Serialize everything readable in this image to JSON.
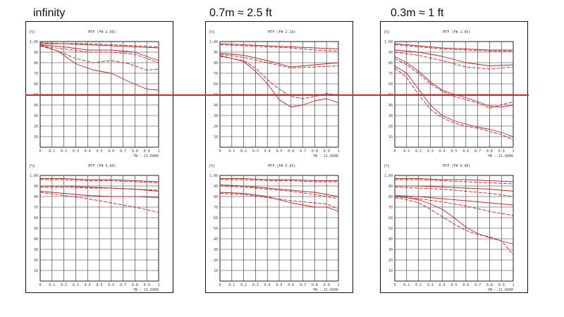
{
  "headers": [
    {
      "text": "infinity"
    },
    {
      "text": "0.7m   ≈ 2.5 ft"
    },
    {
      "text": "0.3m   ≈ 1 ft"
    }
  ],
  "chart_data": [
    {
      "type": "line",
      "unit": "[%]",
      "title": "MTF (F# 2.06)",
      "xnote": "YN -   21.6000",
      "xlim": [
        0,
        1
      ],
      "ylim": [
        0,
        100
      ],
      "xticks": [
        "0",
        "0.1",
        "0.2",
        "0.3",
        "0.4",
        "0.5",
        "0.6",
        "0.7",
        "0.8",
        "0.9",
        "1"
      ],
      "yticks": [
        "1.00",
        "90",
        "80",
        "70",
        "60",
        "50",
        "40",
        "30",
        "20",
        "10"
      ],
      "series": [
        {
          "style": "solid",
          "x": [
            0,
            0.2,
            0.4,
            0.6,
            0.8,
            1
          ],
          "y": [
            98,
            98,
            97,
            96,
            95,
            94
          ]
        },
        {
          "style": "dash",
          "x": [
            0,
            0.2,
            0.4,
            0.6,
            0.8,
            1
          ],
          "y": [
            99,
            98,
            98,
            97,
            96,
            95
          ]
        },
        {
          "style": "solid",
          "x": [
            0,
            0.2,
            0.4,
            0.6,
            0.8,
            0.9,
            1
          ],
          "y": [
            97,
            95,
            92,
            92,
            90,
            86,
            82
          ]
        },
        {
          "style": "dash",
          "x": [
            0,
            0.2,
            0.4,
            0.6,
            0.8,
            0.9,
            1
          ],
          "y": [
            96,
            93,
            90,
            90,
            88,
            84,
            80
          ]
        },
        {
          "style": "solid",
          "x": [
            0,
            0.15,
            0.3,
            0.45,
            0.6,
            0.75,
            0.9,
            1
          ],
          "y": [
            97,
            91,
            79,
            73,
            70,
            62,
            55,
            54
          ]
        },
        {
          "style": "dash",
          "x": [
            0,
            0.15,
            0.3,
            0.45,
            0.6,
            0.75,
            0.9,
            1
          ],
          "y": [
            96,
            91,
            84,
            80,
            82,
            79,
            73,
            74
          ]
        }
      ]
    },
    {
      "type": "line",
      "unit": "[%]",
      "title": "MTF (F# 2.19)",
      "xnote": "YN -   21.6000",
      "xlim": [
        0,
        1
      ],
      "ylim": [
        0,
        100
      ],
      "xticks": [
        "0",
        "0.1",
        "0.2",
        "0.3",
        "0.4",
        "0.5",
        "0.6",
        "0.7",
        "0.8",
        "0.9",
        "1"
      ],
      "yticks": [
        "1.00",
        "90",
        "80",
        "70",
        "60",
        "50",
        "40",
        "30",
        "20",
        "10"
      ],
      "series": [
        {
          "style": "solid",
          "x": [
            0,
            0.2,
            0.4,
            0.6,
            0.8,
            1
          ],
          "y": [
            98,
            97,
            96,
            95,
            94,
            93
          ]
        },
        {
          "style": "dash",
          "x": [
            0,
            0.2,
            0.4,
            0.6,
            0.8,
            1
          ],
          "y": [
            97,
            96,
            95,
            94,
            92,
            91
          ]
        },
        {
          "style": "solid",
          "x": [
            0,
            0.2,
            0.4,
            0.6,
            0.8,
            1
          ],
          "y": [
            89,
            87,
            82,
            76,
            78,
            80
          ]
        },
        {
          "style": "dash",
          "x": [
            0,
            0.2,
            0.4,
            0.6,
            0.8,
            1
          ],
          "y": [
            88,
            85,
            80,
            75,
            76,
            77
          ]
        },
        {
          "style": "solid",
          "x": [
            0,
            0.2,
            0.3,
            0.4,
            0.5,
            0.6,
            0.7,
            0.8,
            0.9,
            1
          ],
          "y": [
            87,
            81,
            72,
            60,
            45,
            38,
            40,
            44,
            46,
            42
          ]
        },
        {
          "style": "dash",
          "x": [
            0,
            0.2,
            0.3,
            0.4,
            0.5,
            0.6,
            0.7,
            0.8,
            0.9,
            1
          ],
          "y": [
            86,
            82,
            75,
            64,
            55,
            48,
            46,
            48,
            51,
            49
          ]
        }
      ]
    },
    {
      "type": "line",
      "unit": "[%]",
      "title": "MTF (F# 2.45)",
      "xnote": "YN -   21.6000",
      "xlim": [
        0,
        1
      ],
      "ylim": [
        0,
        100
      ],
      "xticks": [
        "0",
        "0.1",
        "0.2",
        "0.3",
        "0.4",
        "0.5",
        "0.6",
        "0.7",
        "0.8",
        "0.9",
        "1"
      ],
      "yticks": [
        "1.00",
        "90",
        "80",
        "70",
        "60",
        "50",
        "40",
        "30",
        "20",
        "10"
      ],
      "series": [
        {
          "style": "solid",
          "x": [
            0,
            0.2,
            0.4,
            0.6,
            0.8,
            1
          ],
          "y": [
            98,
            96,
            94,
            93,
            92,
            92
          ]
        },
        {
          "style": "dash",
          "x": [
            0,
            0.2,
            0.4,
            0.6,
            0.8,
            1
          ],
          "y": [
            97,
            95,
            93,
            92,
            91,
            91
          ]
        },
        {
          "style": "solid",
          "x": [
            0,
            0.2,
            0.4,
            0.6,
            0.8,
            1
          ],
          "y": [
            92,
            90,
            86,
            80,
            77,
            78
          ]
        },
        {
          "style": "dash",
          "x": [
            0,
            0.2,
            0.4,
            0.6,
            0.8,
            1
          ],
          "y": [
            90,
            87,
            82,
            76,
            74,
            76
          ]
        },
        {
          "style": "solid",
          "x": [
            0,
            0.1,
            0.2,
            0.3,
            0.4,
            0.5,
            0.6,
            0.7,
            0.8,
            0.9,
            1
          ],
          "y": [
            86,
            80,
            72,
            62,
            54,
            50,
            47,
            43,
            39,
            38,
            40
          ]
        },
        {
          "style": "dash",
          "x": [
            0,
            0.1,
            0.2,
            0.3,
            0.4,
            0.5,
            0.6,
            0.7,
            0.8,
            0.9,
            1
          ],
          "y": [
            84,
            78,
            70,
            60,
            53,
            48,
            45,
            42,
            37,
            40,
            43
          ]
        },
        {
          "style": "solid",
          "x": [
            0,
            0.1,
            0.2,
            0.3,
            0.4,
            0.5,
            0.6,
            0.7,
            0.8,
            0.9,
            1
          ],
          "y": [
            77,
            70,
            55,
            40,
            30,
            25,
            22,
            19,
            17,
            14,
            10
          ]
        },
        {
          "style": "dash",
          "x": [
            0,
            0.1,
            0.2,
            0.3,
            0.4,
            0.5,
            0.6,
            0.7,
            0.8,
            0.9,
            1
          ],
          "y": [
            75,
            66,
            50,
            36,
            28,
            23,
            20,
            18,
            15,
            12,
            7
          ]
        }
      ]
    },
    {
      "type": "line",
      "unit": "[%]",
      "title": "MTF (F# 5.60)",
      "xnote": "YN -   21.6000",
      "xlim": [
        0,
        1
      ],
      "ylim": [
        0,
        100
      ],
      "xticks": [
        "0",
        "0.1",
        "0.2",
        "0.3",
        "0.4",
        "0.5",
        "0.6",
        "0.7",
        "0.8",
        "0.9",
        "1"
      ],
      "yticks": [
        "1.00",
        "90",
        "80",
        "70",
        "60",
        "50",
        "40",
        "30",
        "20",
        "10"
      ],
      "series": [
        {
          "style": "solid",
          "x": [
            0,
            0.2,
            0.4,
            0.6,
            0.8,
            1
          ],
          "y": [
            97,
            97,
            96,
            96,
            95,
            94
          ]
        },
        {
          "style": "dash",
          "x": [
            0,
            0.2,
            0.4,
            0.6,
            0.8,
            1
          ],
          "y": [
            96,
            96,
            95,
            95,
            94,
            93
          ]
        },
        {
          "style": "solid",
          "x": [
            0,
            0.2,
            0.4,
            0.6,
            0.8,
            1
          ],
          "y": [
            90,
            90,
            89,
            88,
            87,
            85
          ]
        },
        {
          "style": "dash",
          "x": [
            0,
            0.2,
            0.4,
            0.6,
            0.8,
            1
          ],
          "y": [
            89,
            89,
            88,
            88,
            87,
            86
          ]
        },
        {
          "style": "solid",
          "x": [
            0,
            0.2,
            0.4,
            0.6,
            0.8,
            1
          ],
          "y": [
            85,
            83,
            81,
            80,
            80,
            79
          ]
        },
        {
          "style": "dash",
          "x": [
            0,
            0.2,
            0.4,
            0.6,
            0.8,
            1
          ],
          "y": [
            84,
            81,
            78,
            74,
            70,
            65
          ]
        }
      ]
    },
    {
      "type": "line",
      "unit": "[%]",
      "title": "MTF (F# 5.93)",
      "xnote": "YN -   21.6000",
      "xlim": [
        0,
        1
      ],
      "ylim": [
        0,
        100
      ],
      "xticks": [
        "0",
        "0.1",
        "0.2",
        "0.3",
        "0.4",
        "0.5",
        "0.6",
        "0.7",
        "0.8",
        "0.9",
        "1"
      ],
      "yticks": [
        "1.00",
        "90",
        "80",
        "70",
        "60",
        "50",
        "40",
        "30",
        "20",
        "10"
      ],
      "series": [
        {
          "style": "solid",
          "x": [
            0,
            0.2,
            0.4,
            0.6,
            0.8,
            1
          ],
          "y": [
            97,
            97,
            96,
            96,
            95,
            95
          ]
        },
        {
          "style": "dash",
          "x": [
            0,
            0.2,
            0.4,
            0.6,
            0.8,
            1
          ],
          "y": [
            96,
            96,
            95,
            95,
            94,
            94
          ]
        },
        {
          "style": "solid",
          "x": [
            0,
            0.2,
            0.4,
            0.6,
            0.8,
            1
          ],
          "y": [
            91,
            90,
            88,
            86,
            84,
            80
          ]
        },
        {
          "style": "dash",
          "x": [
            0,
            0.2,
            0.4,
            0.6,
            0.8,
            1
          ],
          "y": [
            90,
            89,
            87,
            85,
            82,
            78
          ]
        },
        {
          "style": "solid",
          "x": [
            0,
            0.2,
            0.4,
            0.6,
            0.8,
            0.9,
            1
          ],
          "y": [
            84,
            83,
            80,
            74,
            70,
            70,
            66
          ]
        },
        {
          "style": "dash",
          "x": [
            0,
            0.2,
            0.4,
            0.6,
            0.8,
            0.9,
            1
          ],
          "y": [
            83,
            82,
            79,
            76,
            74,
            73,
            68
          ]
        }
      ]
    },
    {
      "type": "line",
      "unit": "[%]",
      "title": "MTF (F# 6.40)",
      "xnote": "YN -   21.6000",
      "xlim": [
        0,
        1
      ],
      "ylim": [
        0,
        100
      ],
      "xticks": [
        "0",
        "0.1",
        "0.2",
        "0.3",
        "0.4",
        "0.5",
        "0.6",
        "0.7",
        "0.8",
        "0.9",
        "1"
      ],
      "yticks": [
        "1.00",
        "90",
        "80",
        "70",
        "60",
        "50",
        "40",
        "30",
        "20",
        "10"
      ],
      "series": [
        {
          "style": "solid",
          "x": [
            0,
            0.2,
            0.4,
            0.6,
            0.8,
            1
          ],
          "y": [
            97,
            97,
            96,
            96,
            95,
            94
          ]
        },
        {
          "style": "dash",
          "x": [
            0,
            0.2,
            0.4,
            0.6,
            0.8,
            1
          ],
          "y": [
            96,
            96,
            95,
            94,
            93,
            92
          ]
        },
        {
          "style": "solid",
          "x": [
            0,
            0.2,
            0.4,
            0.6,
            0.8,
            1
          ],
          "y": [
            90,
            90,
            89,
            88,
            87,
            85
          ]
        },
        {
          "style": "dash",
          "x": [
            0,
            0.2,
            0.4,
            0.6,
            0.8,
            1
          ],
          "y": [
            89,
            88,
            87,
            85,
            83,
            80
          ]
        },
        {
          "style": "solid",
          "x": [
            0,
            0.2,
            0.4,
            0.6,
            0.8,
            1
          ],
          "y": [
            81,
            80,
            78,
            76,
            74,
            72
          ]
        },
        {
          "style": "dash",
          "x": [
            0,
            0.2,
            0.4,
            0.6,
            0.8,
            1
          ],
          "y": [
            80,
            78,
            75,
            71,
            66,
            62
          ]
        },
        {
          "style": "solid",
          "x": [
            0,
            0.1,
            0.2,
            0.3,
            0.4,
            0.5,
            0.6,
            0.7,
            0.8,
            0.9,
            1
          ],
          "y": [
            80,
            79,
            77,
            73,
            68,
            60,
            51,
            45,
            41,
            38,
            35
          ]
        },
        {
          "style": "dash",
          "x": [
            0,
            0.1,
            0.2,
            0.3,
            0.4,
            0.5,
            0.6,
            0.7,
            0.8,
            0.9,
            1
          ],
          "y": [
            79,
            77,
            74,
            68,
            61,
            54,
            48,
            44,
            42,
            38,
            25
          ]
        }
      ]
    }
  ]
}
